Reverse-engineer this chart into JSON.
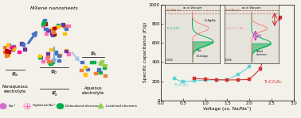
{
  "xlabel": "Voltage (vs. Na/Na⁺)",
  "ylabel": "Specific capacitance (F/g)",
  "xlim": [
    0.0,
    3.0
  ],
  "ylim": [
    0,
    1000
  ],
  "yticks": [
    0,
    200,
    400,
    600,
    800,
    1000
  ],
  "xticks": [
    0.0,
    0.5,
    1.0,
    1.5,
    2.0,
    2.5,
    3.0
  ],
  "series1_label": "Ti₃C₂Nₓ",
  "series1_color": "#5fd4d4",
  "series1_x": [
    0.3,
    0.5,
    0.75,
    1.0,
    1.25,
    1.5,
    1.75,
    2.0
  ],
  "series1_y": [
    225,
    193,
    204,
    210,
    214,
    215,
    270,
    350
  ],
  "series2_label": "Ti₃CO₂Nₓ",
  "series2_color": "#d43030",
  "series2_x": [
    0.75,
    1.0,
    1.25,
    1.5,
    1.75,
    2.0,
    2.25,
    2.5,
    2.7
  ],
  "series2_y": [
    228,
    222,
    215,
    213,
    214,
    218,
    330,
    755,
    870
  ],
  "bg_color": "#f4f0ea",
  "panel_bg": "#f4f0ea",
  "inset_bg": "#e6e2dc"
}
